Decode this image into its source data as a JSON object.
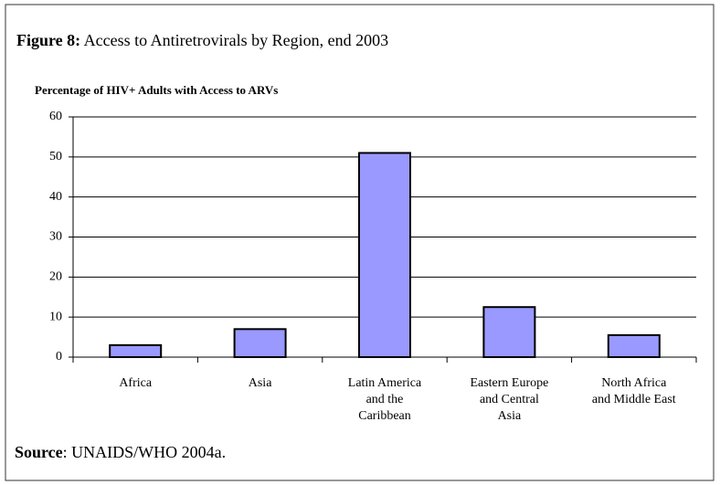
{
  "chart_data": {
    "type": "bar",
    "figure_label": "Figure 8:",
    "title": "Access to Antiretrovirals by Region, end 2003",
    "subtitle": "Percentage of HIV+ Adults with Access to ARVs",
    "categories": [
      [
        "Africa"
      ],
      [
        "Asia"
      ],
      [
        "Latin America",
        "and the",
        "Caribbean"
      ],
      [
        "Eastern Europe",
        "and Central",
        "Asia"
      ],
      [
        "North Africa",
        "and Middle East"
      ]
    ],
    "values": [
      3,
      7,
      51,
      12.5,
      5.5
    ],
    "color": "#9999ff",
    "ylim": [
      0,
      60
    ],
    "yticks": [
      0,
      10,
      20,
      30,
      40,
      50,
      60
    ],
    "grid": true,
    "source_label": "Source",
    "source": ": UNAIDS/WHO 2004a."
  }
}
